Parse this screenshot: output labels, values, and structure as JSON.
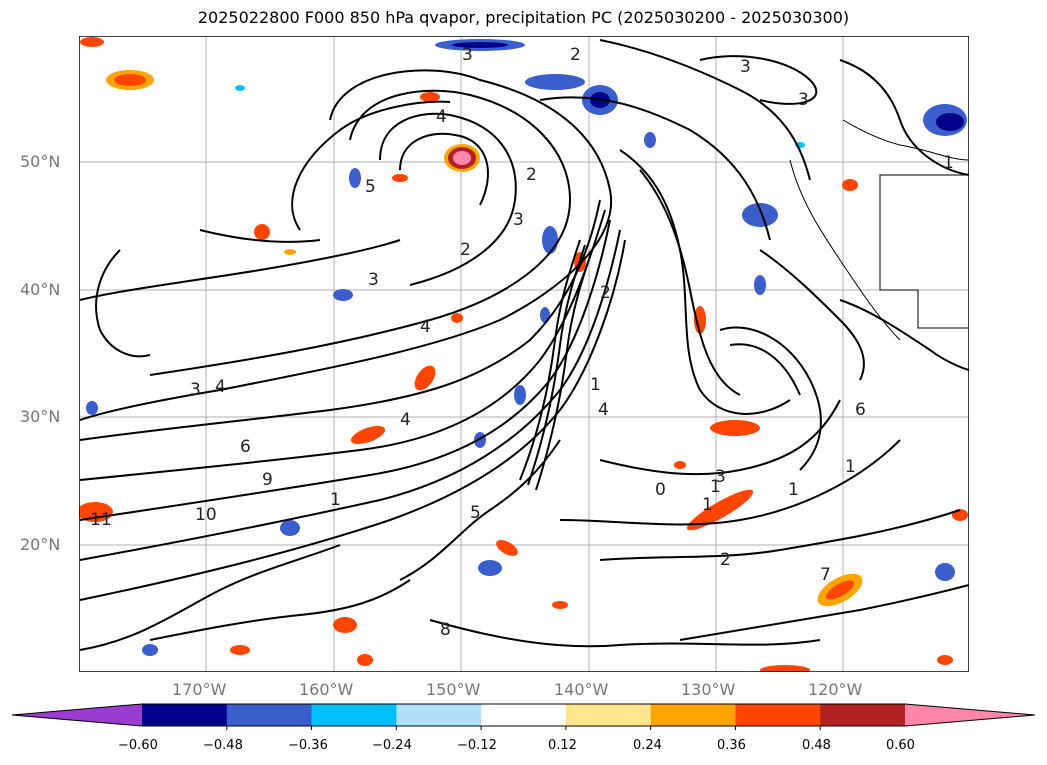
{
  "title": "2025022800 F000 850 hPa qvapor, precipitation PC (2025030200 - 2025030300)",
  "lat_labels": [
    "50°N",
    "40°N",
    "30°N",
    "20°N"
  ],
  "lon_labels": [
    "170°W",
    "160°W",
    "150°W",
    "140°W",
    "130°W",
    "120°W"
  ],
  "colorbar": {
    "ticks": [
      "−0.60",
      "−0.48",
      "−0.36",
      "−0.24",
      "−0.12",
      "0.12",
      "0.24",
      "0.36",
      "0.48",
      "0.60"
    ],
    "colors": [
      "#9a3ccf",
      "#00008b",
      "#3a5fcd",
      "#00bfff",
      "#afe0f8",
      "#ffffff",
      "#ffe58f",
      "#ffa500",
      "#ff4500",
      "#b22222",
      "#ff86ab"
    ]
  },
  "contour_labels": [
    "3",
    "2",
    "3",
    "4",
    "3",
    "5",
    "2",
    "2",
    "3",
    "1",
    "3",
    "4",
    "2",
    "3",
    "4",
    "4",
    "4",
    "6",
    "9",
    "10",
    "11",
    "1",
    "1",
    "1",
    "2",
    "3",
    "1",
    "1",
    "0",
    "1",
    "6",
    "7",
    "8",
    "5"
  ]
}
